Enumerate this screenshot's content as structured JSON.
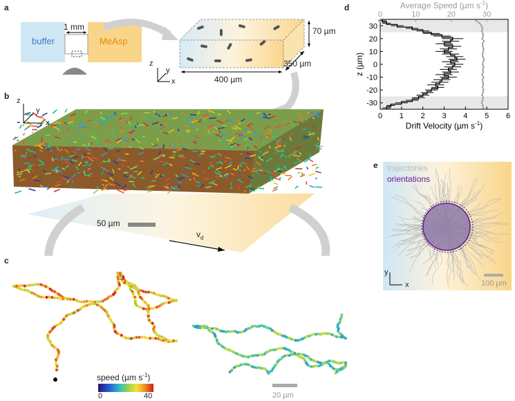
{
  "panels": {
    "a": {
      "label": "a",
      "buffer": "buffer",
      "gap": "1 mm",
      "measp": "MeAsp",
      "depth": "70 µm",
      "width": "400 µm",
      "length": "350 µm",
      "axis_x": "x",
      "axis_y": "y",
      "axis_z": "z"
    },
    "b": {
      "label": "b",
      "axis_x": "x",
      "axis_y": "y",
      "axis_z": "z",
      "scale": "50 µm",
      "drift": "v",
      "drift_sub": "d"
    },
    "c": {
      "label": "c",
      "colorbar_title": "speed (µm s",
      "colorbar_sup": "-1",
      "colorbar_close": ")",
      "colorbar_min": "0",
      "colorbar_max": "40",
      "scale": "20 µm"
    },
    "d": {
      "label": "d"
    },
    "e": {
      "label": "e",
      "legend_traj": "trajectories",
      "legend_orient": "orientations",
      "axis_x": "x",
      "axis_y": "y",
      "scale": "100 µm"
    }
  },
  "colors": {
    "buffer_blue": "#cfe6f5",
    "measp_orange": "#f9d58a",
    "orient_purple": "#6a1b9a",
    "speed_gray": "#9e9e9e"
  },
  "chart_data": {
    "type": "line",
    "top_axis_label": "Average Speed (µm s",
    "top_axis_sup": "-1",
    "top_axis_close": ")",
    "bottom_axis_label": "Drift Velocity (µm s",
    "bottom_axis_sup": "-1",
    "bottom_axis_close": ")",
    "ylabel": "z (µm)",
    "xlim": [
      0,
      6
    ],
    "xticks": [
      "0",
      "1",
      "2",
      "3",
      "4",
      "5",
      "6"
    ],
    "toplim": [
      0,
      36
    ],
    "topticks": [
      "0",
      "10",
      "20",
      "30"
    ],
    "ylim": [
      -35,
      35
    ],
    "yticks": [
      "30",
      "20",
      "10",
      "0",
      "-10",
      "-20",
      "-30"
    ],
    "excluded_bands": [
      [
        25,
        35
      ],
      [
        -35,
        -25
      ]
    ],
    "series": [
      {
        "z": [
          34,
          32,
          30,
          28,
          26,
          24,
          22,
          20,
          18,
          16,
          14,
          12,
          10,
          8,
          6,
          4,
          2,
          0,
          -2,
          -4,
          -6,
          -8,
          -10,
          -12,
          -14,
          -16,
          -18,
          -20,
          -22,
          -24,
          -26,
          -28,
          -30,
          -32,
          -34
        ],
        "drift": [
          0.1,
          0.3,
          0.8,
          1.5,
          2.0,
          2.4,
          2.9,
          3.4,
          3.3,
          3.0,
          3.4,
          3.2,
          3.0,
          3.3,
          3.5,
          3.6,
          3.3,
          3.5,
          3.4,
          3.2,
          3.3,
          3.0,
          3.2,
          2.9,
          2.8,
          2.6,
          2.7,
          2.4,
          2.2,
          2.0,
          1.8,
          1.5,
          1.0,
          0.5,
          0.3
        ],
        "drift_err": [
          0.2,
          0.2,
          0.3,
          0.3,
          0.3,
          0.4,
          0.4,
          0.5,
          0.4,
          0.4,
          0.4,
          0.4,
          0.4,
          0.4,
          0.4,
          0.4,
          0.4,
          0.4,
          0.4,
          0.4,
          0.4,
          0.4,
          0.4,
          0.4,
          0.4,
          0.4,
          0.3,
          0.3,
          0.3,
          0.3,
          0.3,
          0.3,
          0.3,
          0.2,
          0.2
        ],
        "avg_speed": [
          27,
          28,
          28.5,
          28.8,
          28.6,
          28.9,
          29.0,
          28.7,
          29.2,
          28.8,
          28.9,
          29.1,
          29.0,
          28.8,
          28.9,
          29.2,
          29.0,
          28.8,
          29.1,
          28.9,
          29.0,
          28.7,
          29.1,
          28.8,
          28.9,
          29.0,
          28.8,
          29.1,
          28.9,
          28.7,
          29.0,
          28.8,
          28.6,
          28.9,
          29.0
        ]
      }
    ]
  }
}
